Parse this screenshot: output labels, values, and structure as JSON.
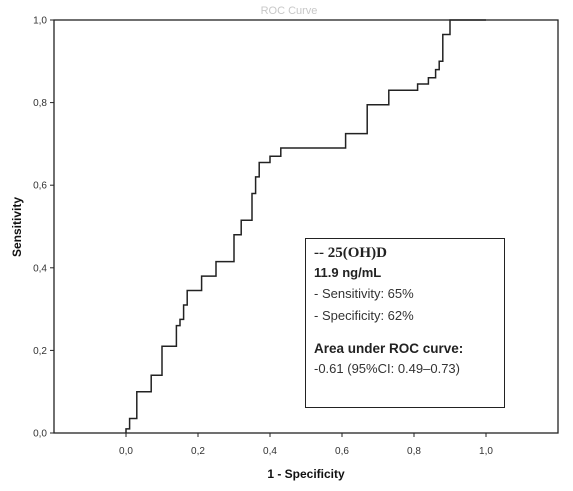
{
  "chart_data": {
    "type": "line",
    "title": "ROC Curve",
    "xlabel": "1 - Specificity",
    "ylabel": "Sensitivity",
    "xlim": [
      -0.2,
      1.2
    ],
    "ylim": [
      0.0,
      1.0
    ],
    "x_ticks": [
      "0,0",
      "0,2",
      "0,4",
      "0,6",
      "0,8",
      "1,0"
    ],
    "y_ticks": [
      "0,0",
      "0,2",
      "0,4",
      "0,6",
      "0,8",
      "1,0"
    ],
    "grid": false,
    "legend": "none",
    "series": [
      {
        "points": [
          [
            0.0,
            0.0
          ],
          [
            0.0,
            0.01
          ],
          [
            0.01,
            0.01
          ],
          [
            0.01,
            0.035
          ],
          [
            0.03,
            0.035
          ],
          [
            0.03,
            0.1
          ],
          [
            0.07,
            0.1
          ],
          [
            0.07,
            0.14
          ],
          [
            0.1,
            0.14
          ],
          [
            0.1,
            0.21
          ],
          [
            0.14,
            0.21
          ],
          [
            0.14,
            0.26
          ],
          [
            0.15,
            0.26
          ],
          [
            0.15,
            0.275
          ],
          [
            0.16,
            0.275
          ],
          [
            0.16,
            0.31
          ],
          [
            0.17,
            0.31
          ],
          [
            0.17,
            0.345
          ],
          [
            0.21,
            0.345
          ],
          [
            0.21,
            0.38
          ],
          [
            0.25,
            0.38
          ],
          [
            0.25,
            0.415
          ],
          [
            0.3,
            0.415
          ],
          [
            0.3,
            0.48
          ],
          [
            0.32,
            0.48
          ],
          [
            0.32,
            0.515
          ],
          [
            0.35,
            0.515
          ],
          [
            0.35,
            0.58
          ],
          [
            0.36,
            0.58
          ],
          [
            0.36,
            0.62
          ],
          [
            0.37,
            0.62
          ],
          [
            0.37,
            0.655
          ],
          [
            0.4,
            0.655
          ],
          [
            0.4,
            0.67
          ],
          [
            0.43,
            0.67
          ],
          [
            0.43,
            0.69
          ],
          [
            0.61,
            0.69
          ],
          [
            0.61,
            0.725
          ],
          [
            0.67,
            0.725
          ],
          [
            0.67,
            0.795
          ],
          [
            0.73,
            0.795
          ],
          [
            0.73,
            0.83
          ],
          [
            0.81,
            0.83
          ],
          [
            0.81,
            0.845
          ],
          [
            0.84,
            0.845
          ],
          [
            0.84,
            0.86
          ],
          [
            0.86,
            0.86
          ],
          [
            0.86,
            0.88
          ],
          [
            0.87,
            0.88
          ],
          [
            0.87,
            0.9
          ],
          [
            0.88,
            0.9
          ],
          [
            0.88,
            0.965
          ],
          [
            0.9,
            0.965
          ],
          [
            0.9,
            1.0
          ],
          [
            1.0,
            1.0
          ]
        ]
      }
    ],
    "annotation": {
      "header": "-- 25(OH)D",
      "cutoff": "11.9 ng/mL",
      "sensitivity": "- Sensitivity: 65%",
      "specificity": "- Specificity: 62%",
      "auc_title": "Area under ROC curve:",
      "auc_value": "-0.61 (95%CI: 0.49–0.73)"
    }
  }
}
